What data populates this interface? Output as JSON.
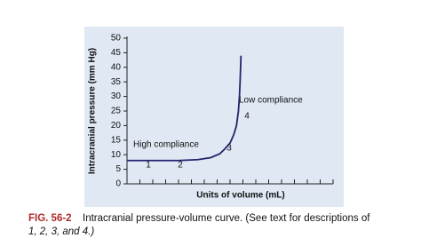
{
  "chart_data": {
    "type": "line",
    "y_label": "Intracranial pressure (mm Hg)",
    "x_label": "Units of volume (mL)",
    "x": [
      0,
      2,
      4,
      5.5,
      6.5,
      7.2,
      7.6,
      8.0,
      8.3,
      8.5,
      8.65,
      8.73,
      8.78,
      8.82,
      8.85
    ],
    "series": [
      {
        "color": "#23236e",
        "values": [
          8,
          8,
          8,
          8.3,
          9,
          10.3,
          12,
          14,
          17,
          20,
          25,
          30,
          35,
          40,
          44
        ]
      }
    ],
    "xlim": [
      0,
      16
    ],
    "xticks": [
      1,
      2,
      3,
      4,
      5,
      6,
      7,
      8,
      9,
      10,
      11,
      12,
      13,
      14,
      15,
      16
    ],
    "ylim": [
      0,
      50
    ],
    "yticks": [
      0,
      5,
      10,
      15,
      20,
      25,
      30,
      35,
      40,
      45,
      50
    ],
    "annotations": [
      "High compliance",
      "1",
      "2",
      "3",
      "Low compliance",
      "4"
    ]
  },
  "caption": {
    "label": "FIG. 56-2",
    "text": "Intracranial pressure-volume curve. (See text for descriptions of",
    "text_cont": "1, 2, 3, and 4.)"
  }
}
